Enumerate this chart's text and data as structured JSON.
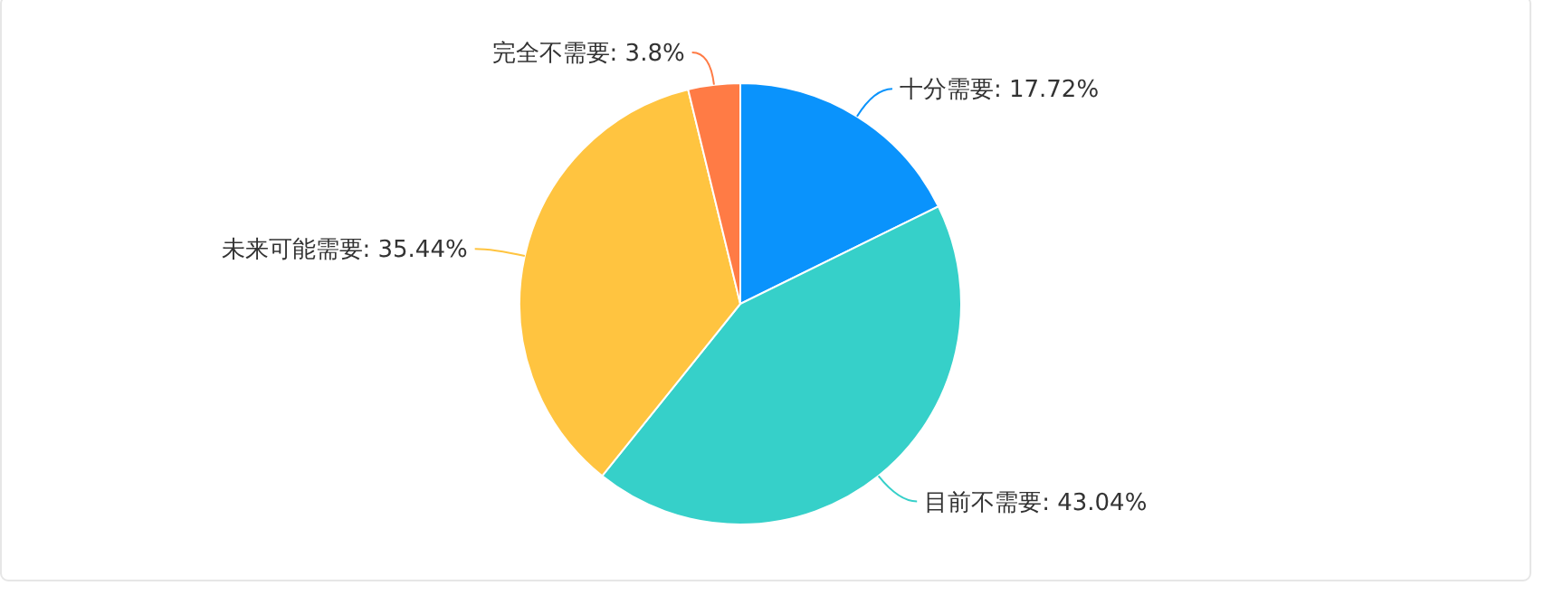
{
  "chart_data": {
    "type": "pie",
    "categories": [
      "十分需要",
      "目前不需要",
      "未来可能需要",
      "完全不需要"
    ],
    "values": [
      17.72,
      43.04,
      35.44,
      3.8
    ],
    "value_labels": [
      "17.72%",
      "43.04%",
      "35.44%",
      "3.8%"
    ],
    "colors": [
      "#0a93fc",
      "#36d0c9",
      "#ffc440",
      "#ff7b45"
    ]
  }
}
